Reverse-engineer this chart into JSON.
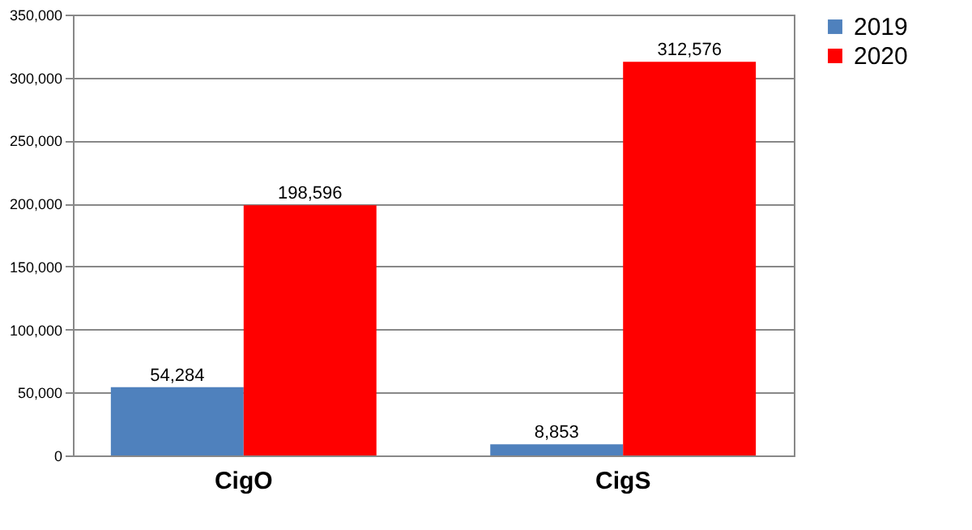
{
  "chart_data": {
    "type": "bar",
    "categories": [
      "CigO",
      "CigS"
    ],
    "series": [
      {
        "name": "2019",
        "color": "#4f81bd",
        "values": [
          54284,
          8853
        ],
        "value_labels": [
          "54,284",
          "8,853"
        ]
      },
      {
        "name": "2020",
        "color": "#ff0000",
        "values": [
          198596,
          312576
        ],
        "value_labels": [
          "198,596",
          "312,576"
        ]
      }
    ],
    "ylim": [
      0,
      350000
    ],
    "yticks": [
      {
        "value": 0,
        "label": "0"
      },
      {
        "value": 50000,
        "label": "50,000"
      },
      {
        "value": 100000,
        "label": "100,000"
      },
      {
        "value": 150000,
        "label": "150,000"
      },
      {
        "value": 200000,
        "label": "200,000"
      },
      {
        "value": 250000,
        "label": "250,000"
      },
      {
        "value": 300000,
        "label": "300,000"
      },
      {
        "value": 350000,
        "label": "350,000"
      }
    ],
    "grid": "y",
    "legend": "right"
  }
}
